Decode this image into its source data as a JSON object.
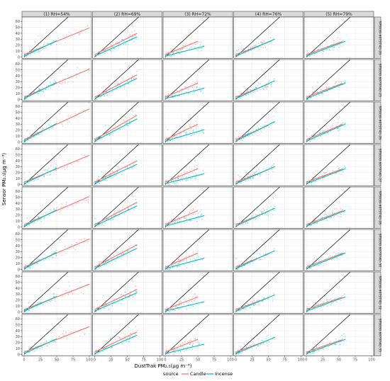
{
  "chart_data": {
    "type": "scatter",
    "layout": "facet-grid",
    "xlabel": "DustTrak PM₂.₅(μg m⁻³)",
    "ylabel": "Sensor PM₂.₅(μg m⁻³)",
    "columns": [
      "(1) RH=54%",
      "(2) RH=69%",
      "(3) RH=72%",
      "(4) RH=76%",
      "(5) RH=79%"
    ],
    "rows": [
      "SPS030-607974D-20",
      "SPS030-607974D-25",
      "SPS030-607974D-26",
      "SPS030-607974D-27",
      "SPS030-607974D-28",
      "SPS030-607974D-30",
      "SPS030-607974D-32",
      "SPS030-607974D-35"
    ],
    "xlim": [
      0,
      100
    ],
    "ylim": [
      0,
      65
    ],
    "xticks": [
      0,
      25,
      50,
      75,
      100
    ],
    "yticks": [
      0,
      10,
      20,
      30,
      40,
      50,
      60
    ],
    "grid": true,
    "reference_line": "y = x",
    "legend": {
      "title": "source",
      "position": "bottom",
      "entries": [
        "Candle",
        "Incense"
      ]
    },
    "series": [
      {
        "name": "Candle",
        "color": "#f8766d"
      },
      {
        "name": "Incense",
        "color": "#00bfc4"
      }
    ],
    "column_xmax": {
      "candle": [
        100,
        65,
        50,
        50,
        55
      ],
      "incense": [
        50,
        65,
        60,
        60,
        60
      ]
    },
    "column_slope": {
      "candle": [
        0.45,
        0.55,
        0.45,
        0.42,
        0.4
      ],
      "incense": [
        0.52,
        0.5,
        0.28,
        0.48,
        0.42
      ]
    },
    "row_slope_factor": [
      1.0,
      1.05,
      1.15,
      1.0,
      1.05,
      1.05,
      0.95,
      0.95
    ]
  },
  "colors": {
    "panel_bg": "#ffffff",
    "panel_border": "#333333",
    "strip_bg": "#d9d9d9",
    "grid": "#ebebeb",
    "reference_line": "#000000"
  }
}
